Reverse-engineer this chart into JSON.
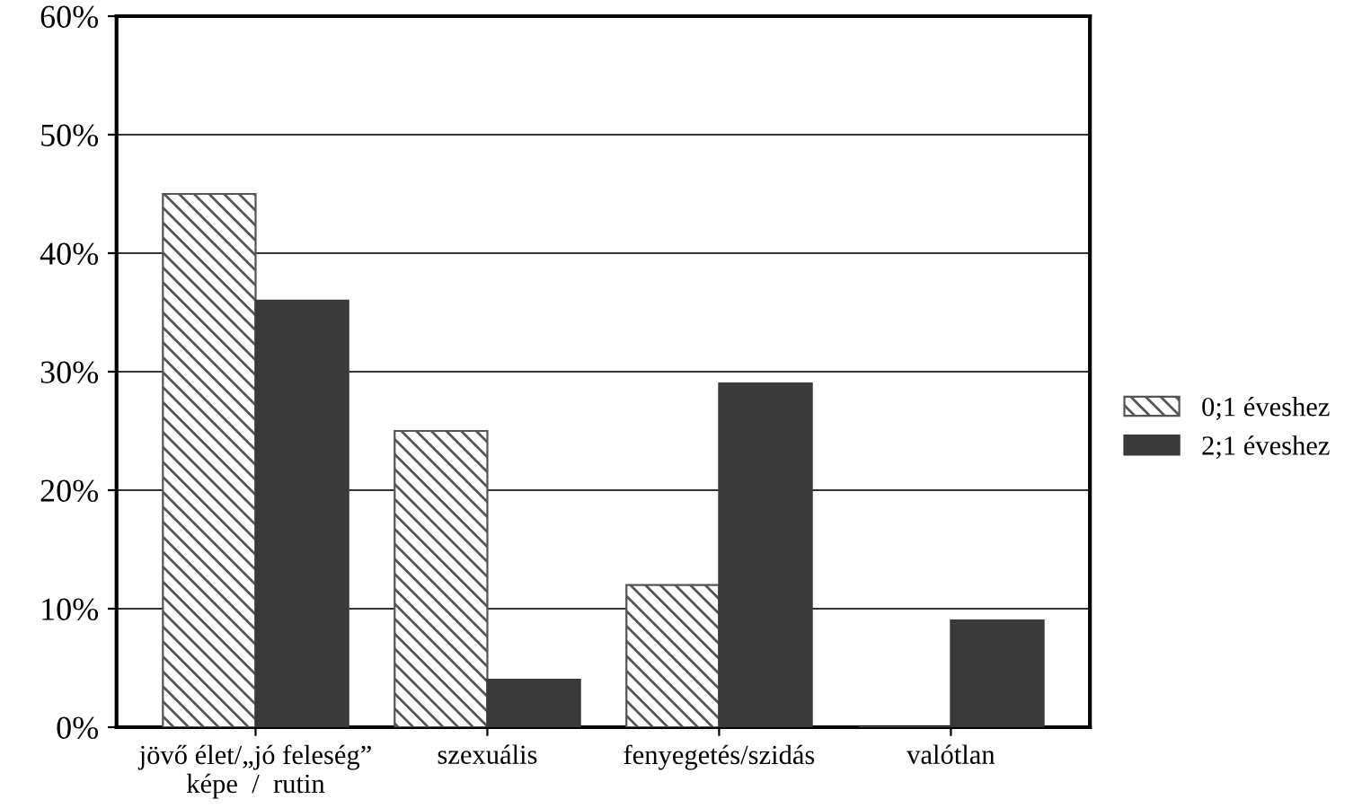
{
  "chart_data": {
    "type": "bar",
    "categories": [
      "jövő élet/„jó feleség”\nképe  /  rutin",
      "szexuális",
      "fenyegetés/szidás",
      "valótlan"
    ],
    "series": [
      {
        "name": "0;1 éveshez",
        "color": "#555555",
        "values": [
          45,
          25,
          12,
          0
        ]
      },
      {
        "name": "2;1 éveshez",
        "color": "#3a3a3a",
        "values": [
          36,
          4,
          29,
          9
        ]
      }
    ],
    "ylim": [
      0,
      60
    ],
    "yticks": [
      {
        "value": 0,
        "label": "0%"
      },
      {
        "value": 10,
        "label": "10%"
      },
      {
        "value": 20,
        "label": "20%"
      },
      {
        "value": 30,
        "label": "30%"
      },
      {
        "value": 40,
        "label": "40%"
      },
      {
        "value": 50,
        "label": "50%"
      },
      {
        "value": 60,
        "label": "60%"
      }
    ],
    "grid": "y",
    "legend": "right"
  }
}
